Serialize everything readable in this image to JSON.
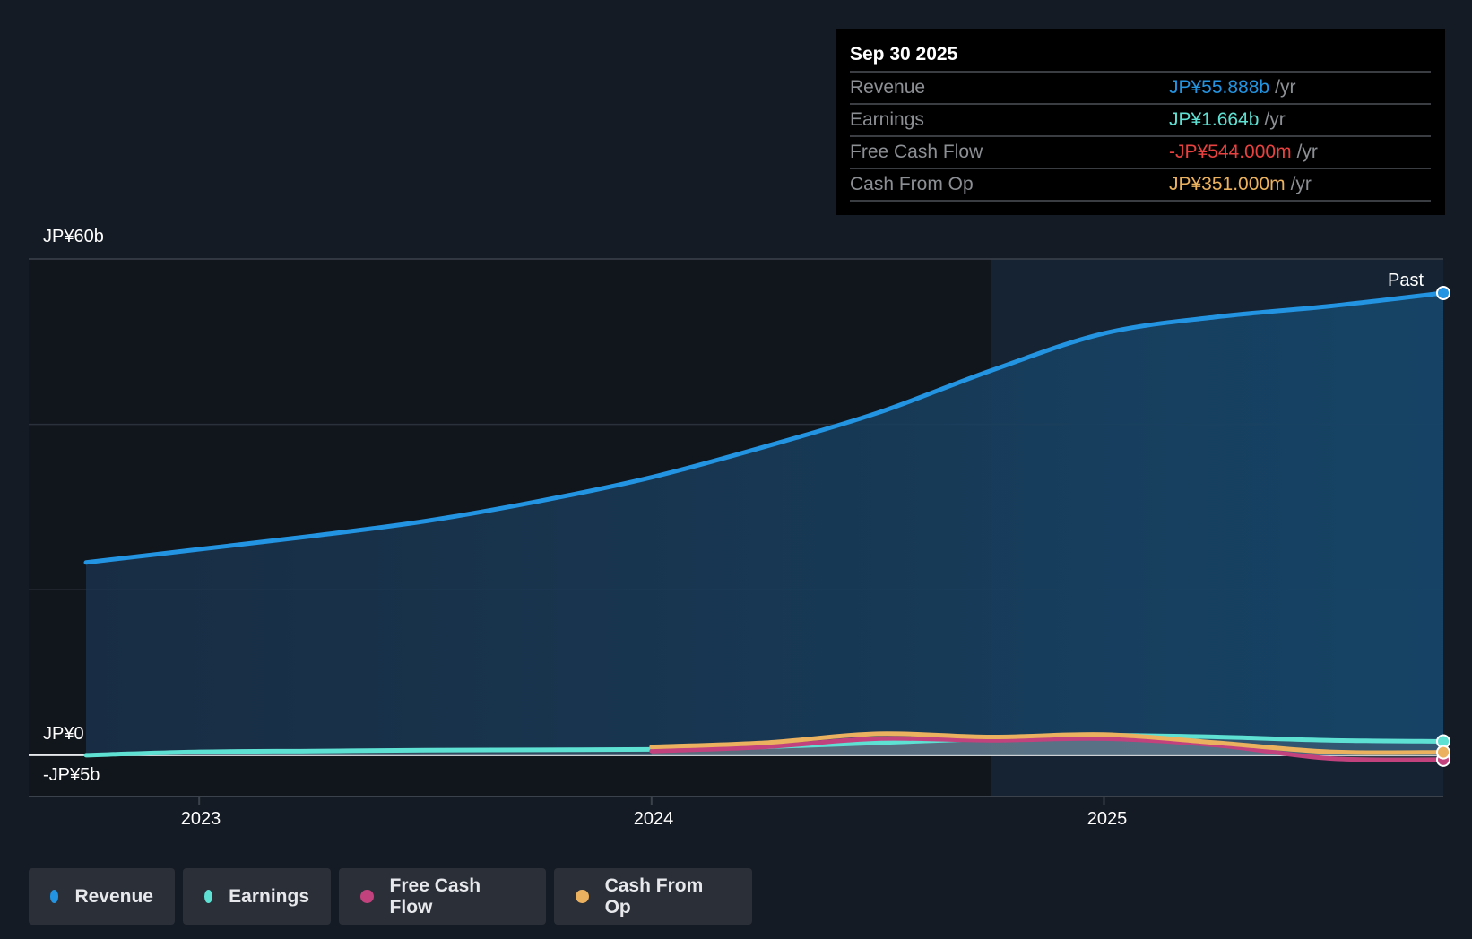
{
  "tooltip": {
    "date": "Sep 30 2025",
    "rows": [
      {
        "label": "Revenue",
        "value": "JP¥55.888b",
        "unit": "/yr",
        "color": "#2394e1"
      },
      {
        "label": "Earnings",
        "value": "JP¥1.664b",
        "unit": "/yr",
        "color": "#5ee1d3"
      },
      {
        "label": "Free Cash Flow",
        "value": "-JP¥544.000m",
        "unit": "/yr",
        "color": "#e8413f"
      },
      {
        "label": "Cash From Op",
        "value": "JP¥351.000m",
        "unit": "/yr",
        "color": "#ebb15e"
      }
    ]
  },
  "chart_data": {
    "type": "line",
    "ylim": [
      -5,
      60
    ],
    "xlim": [
      2022.75,
      2025.75
    ],
    "y_tick_labels": [
      "JP¥60b",
      "JP¥0",
      "-JP¥5b"
    ],
    "x_tick_labels": [
      "2023",
      "2024",
      "2025"
    ],
    "x_ticks": [
      2023,
      2024,
      2025
    ],
    "past_label": "Past",
    "past_region_start": 2024.75,
    "x": [
      2022.75,
      2023.0,
      2023.25,
      2023.5,
      2023.75,
      2024.0,
      2024.25,
      2024.5,
      2024.75,
      2025.0,
      2025.25,
      2025.5,
      2025.75
    ],
    "series": [
      {
        "name": "Revenue",
        "color": "#2394e1",
        "values": [
          23.3,
          24.9,
          26.5,
          28.3,
          30.7,
          33.6,
          37.3,
          41.4,
          46.5,
          51.0,
          53.0,
          54.3,
          55.888
        ]
      },
      {
        "name": "Earnings",
        "color": "#5ee1d3",
        "values": [
          0.0,
          0.4,
          0.5,
          0.6,
          0.65,
          0.7,
          1.0,
          1.5,
          2.0,
          2.4,
          2.2,
          1.8,
          1.664
        ]
      },
      {
        "name": "Free Cash Flow",
        "color": "#c2427e",
        "values": [
          null,
          null,
          null,
          null,
          null,
          0.5,
          1.0,
          2.0,
          1.8,
          2.0,
          1.2,
          -0.4,
          -0.544
        ]
      },
      {
        "name": "Cash From Op",
        "color": "#ebb15e",
        "values": [
          null,
          null,
          null,
          null,
          null,
          1.0,
          1.5,
          2.6,
          2.2,
          2.5,
          1.5,
          0.4,
          0.351
        ]
      }
    ]
  },
  "legend": [
    {
      "label": "Revenue",
      "color": "#2394e1"
    },
    {
      "label": "Earnings",
      "color": "#5ee1d3"
    },
    {
      "label": "Free Cash Flow",
      "color": "#c2427e"
    },
    {
      "label": "Cash From Op",
      "color": "#ebb15e"
    }
  ]
}
